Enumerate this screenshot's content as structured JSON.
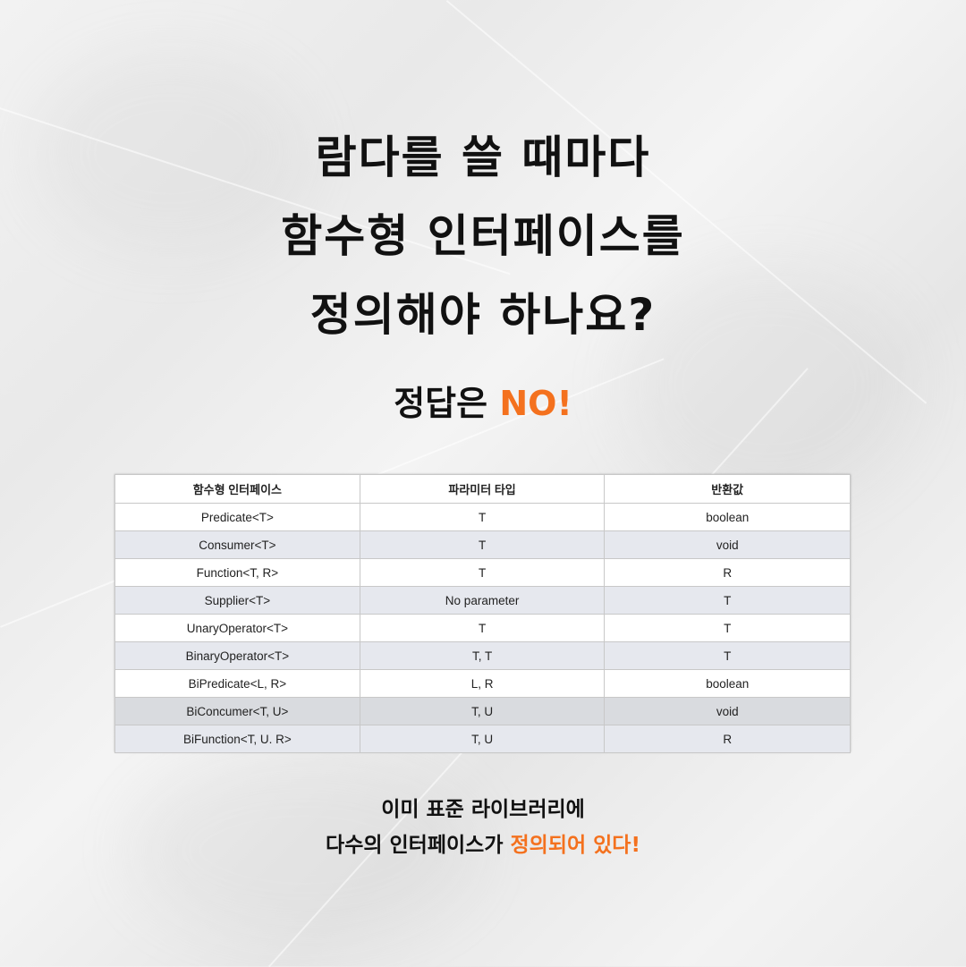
{
  "title": {
    "line1": "람다를 쓸 때마다",
    "line2": "함수형 인터페이스를",
    "line3": "정의해야 하나요?"
  },
  "answer": {
    "prefix": "정답은 ",
    "highlight": "NO!"
  },
  "table": {
    "headers": [
      "함수형 인터페이스",
      "파라미터 타입",
      "반환값"
    ],
    "rows": [
      [
        "Predicate<T>",
        "T",
        "boolean"
      ],
      [
        "Consumer<T>",
        "T",
        "void"
      ],
      [
        "Function<T, R>",
        "T",
        "R"
      ],
      [
        "Supplier<T>",
        "No parameter",
        "T"
      ],
      [
        "UnaryOperator<T>",
        "T",
        "T"
      ],
      [
        "BinaryOperator<T>",
        "T, T",
        "T"
      ],
      [
        "BiPredicate<L, R>",
        "L, R",
        "boolean"
      ],
      [
        "BiConcumer<T, U>",
        "T, U",
        "void"
      ],
      [
        "BiFunction<T, U. R>",
        "T, U",
        "R"
      ]
    ]
  },
  "bottom": {
    "line1": "이미 표준 라이브러리에",
    "line2_prefix": "다수의 인터페이스가 ",
    "line2_highlight": "정의되어 있다!"
  },
  "colors": {
    "accent": "#f4711e",
    "text": "#111111"
  }
}
